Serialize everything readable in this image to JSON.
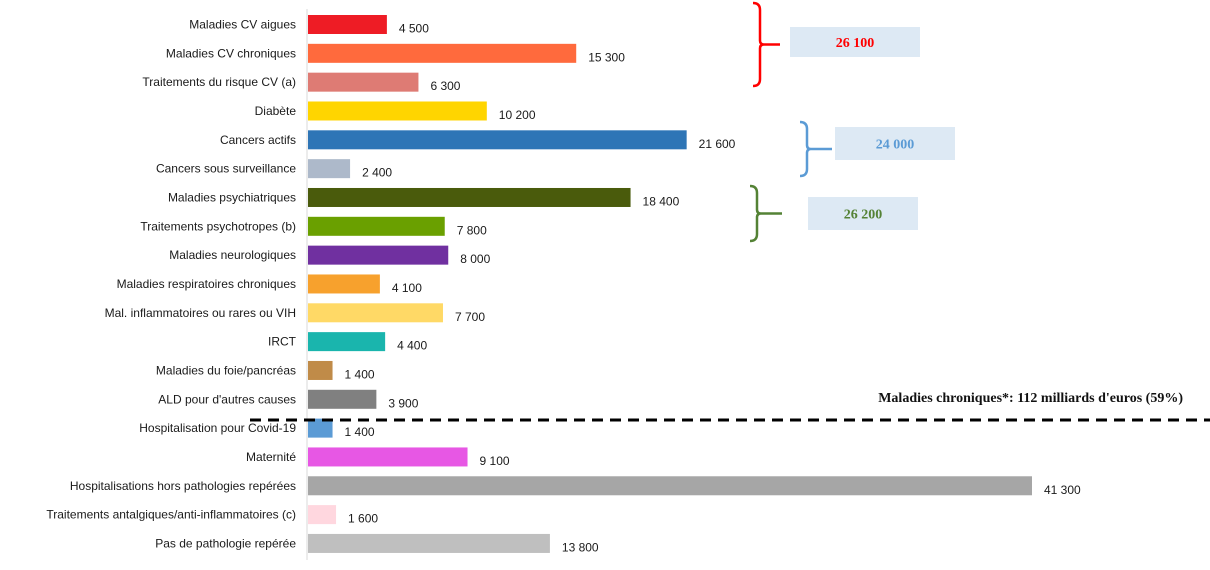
{
  "chart_data": {
    "type": "bar",
    "orientation": "horizontal",
    "categories": [
      "Maladies CV aigues",
      "Maladies CV chroniques",
      "Traitements du risque CV (a)",
      "Diabète",
      "Cancers actifs",
      "Cancers sous surveillance",
      "Maladies psychiatriques",
      "Traitements psychotropes (b)",
      "Maladies neurologiques",
      "Maladies respiratoires chroniques",
      "Mal. inflammatoires ou rares ou VIH",
      "IRCT",
      "Maladies du foie/pancréas",
      "ALD pour d'autres causes",
      "Hospitalisation pour Covid-19",
      "Maternité",
      "Hospitalisations hors pathologies repérées",
      "Traitements antalgiques/anti-inflammatoires (c)",
      "Pas de pathologie repérée"
    ],
    "values": [
      4500,
      15300,
      6300,
      10200,
      21600,
      2400,
      18400,
      7800,
      8000,
      4100,
      7700,
      4400,
      1400,
      3900,
      1400,
      9100,
      41300,
      1600,
      13800
    ],
    "value_labels": [
      "4 500",
      "15 300",
      "6 300",
      "10 200",
      "21 600",
      "2 400",
      "18 400",
      "7 800",
      "8 000",
      "4 100",
      "7 700",
      "4 400",
      "1 400",
      "3 900",
      "1 400",
      "9 100",
      "41 300",
      "1 600",
      "13 800"
    ],
    "colors": [
      "#ee1c25",
      "#ff6a3d",
      "#de7b74",
      "#ffd500",
      "#2e75b6",
      "#adb9ca",
      "#4a5b0c",
      "#6aa000",
      "#7030a0",
      "#f7a12d",
      "#ffd966",
      "#1ab5ad",
      "#c08b48",
      "#808080",
      "#5b9bd5",
      "#e757e4",
      "#a6a6a6",
      "#ffd7df",
      "#bfbfbf"
    ],
    "xlim": [
      0,
      41300
    ],
    "groups": [
      {
        "label": "26 100",
        "first": 0,
        "last": 2,
        "color": "#ff0000",
        "box_color": "#dde9f4"
      },
      {
        "label": "24 000",
        "first": 4,
        "last": 5,
        "color": "#5b9bd5",
        "box_color": "#dde9f4"
      },
      {
        "label": "26 200",
        "first": 6,
        "last": 7,
        "color": "#548235",
        "box_color": "#dde9f4"
      }
    ],
    "separator_after_index": 13,
    "chronic_annotation": "Maladies chroniques*:  112 milliards  d'euros  (59%)"
  }
}
